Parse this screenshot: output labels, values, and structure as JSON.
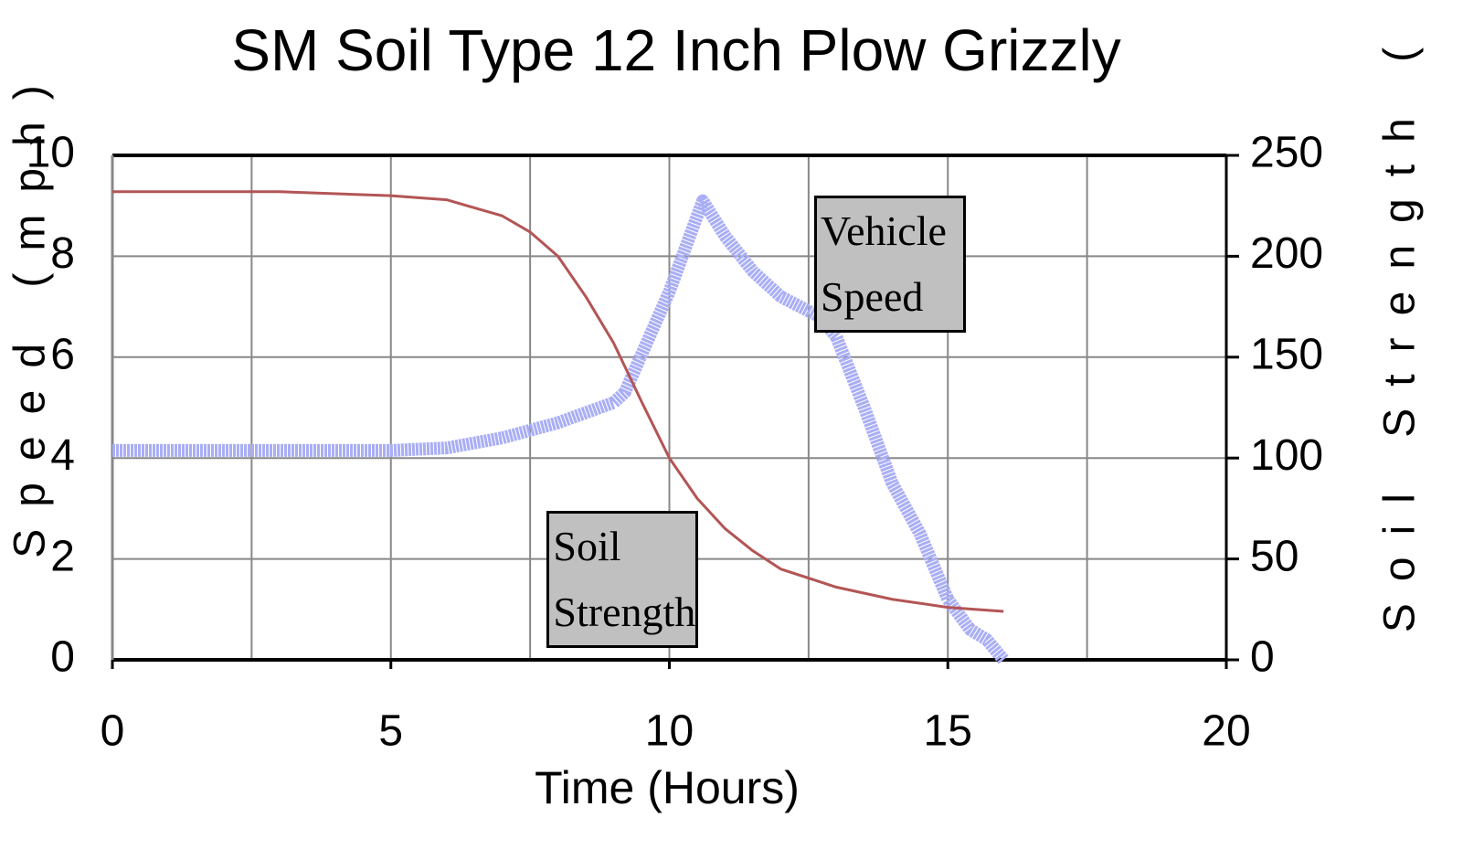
{
  "chart_data": {
    "type": "line",
    "title": "SM Soil Type  12 Inch Plow Grizzly",
    "x_label": "Time (Hours)",
    "y_label": "Speed (mph)",
    "y2_label": "Soil Strength (",
    "xlim": [
      0,
      20
    ],
    "xticks": [
      0,
      5,
      10,
      15,
      20
    ],
    "x_gridlines": [
      0,
      2.5,
      5,
      7.5,
      10,
      12.5,
      15,
      17.5,
      20
    ],
    "ylim": [
      0,
      10
    ],
    "yticks": [
      0,
      2,
      4,
      6,
      8,
      10
    ],
    "y2lim": [
      0,
      250
    ],
    "y2ticks": [
      0,
      50,
      100,
      150,
      200,
      250
    ],
    "grid": true,
    "series": [
      {
        "name": "Vehicle Speed",
        "color": "#a9aef5",
        "axis": "y",
        "x": [
          0,
          5,
          6,
          7,
          8,
          9,
          9.2,
          10,
          10.6,
          11,
          11.5,
          12,
          12.7,
          13,
          13.5,
          14,
          14.5,
          15,
          15.4,
          15.7,
          16
        ],
        "values": [
          4.15,
          4.15,
          4.2,
          4.4,
          4.7,
          5.1,
          5.3,
          7.3,
          9.1,
          8.4,
          7.7,
          7.2,
          6.8,
          6.4,
          5,
          3.5,
          2.5,
          1.2,
          0.6,
          0.4,
          0
        ]
      },
      {
        "name": "Soil Strength",
        "color": "#b35555",
        "axis": "y2",
        "x": [
          0,
          3,
          5,
          6,
          7,
          7.5,
          8,
          8.5,
          9,
          9.5,
          10,
          10.5,
          11,
          11.5,
          12,
          13,
          14,
          15,
          16
        ],
        "values": [
          232,
          232,
          230,
          228,
          220,
          212,
          200,
          180,
          157,
          128,
          100,
          80,
          65,
          54,
          45,
          36,
          30,
          26,
          24
        ]
      }
    ],
    "annotations": [
      {
        "text": "Vehicle Speed",
        "x": 12.6,
        "y": 9.2
      },
      {
        "text": "Soil Strength",
        "x": 7.8,
        "y": 2.95
      }
    ]
  }
}
